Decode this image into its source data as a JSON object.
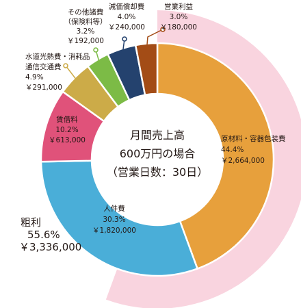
{
  "chart_data": {
    "type": "pie",
    "center_text": [
      "月間売上高",
      "600万円の場合",
      "（営業日数：30日）"
    ],
    "outer_ring": {
      "name": "粗利",
      "percent": "55.6%",
      "amount": "￥3,336,000",
      "value": 55.6,
      "color": "#f9d4df"
    },
    "slices": [
      {
        "name": "原材料・容器包装費",
        "percent": "44.4%",
        "amount": "￥2,664,000",
        "value": 44.4,
        "color": "#e7a03c"
      },
      {
        "name": "人件費",
        "percent": "30.3%",
        "amount": "￥1,820,000",
        "value": 30.3,
        "color": "#4aaed8"
      },
      {
        "name": "賃借料",
        "percent": "10.2%",
        "amount": "￥613,000",
        "value": 10.2,
        "color": "#e0527a"
      },
      {
        "name": "水道光熱費・消耗品\n通信交通費",
        "percent": "4.9%",
        "amount": "￥291,000",
        "value": 4.9,
        "color": "#ccab48"
      },
      {
        "name": "その他諸費\n（保険料等）",
        "percent": "3.2%",
        "amount": "￥192,000",
        "value": 3.2,
        "color": "#7cbb46"
      },
      {
        "name": "減価償却費",
        "percent": "4.0%",
        "amount": "￥240,000",
        "value": 4.0,
        "color": "#24426e"
      },
      {
        "name": "営業利益",
        "percent": "3.0%",
        "amount": "￥180,000",
        "value": 3.0,
        "color": "#a34c16"
      }
    ]
  }
}
